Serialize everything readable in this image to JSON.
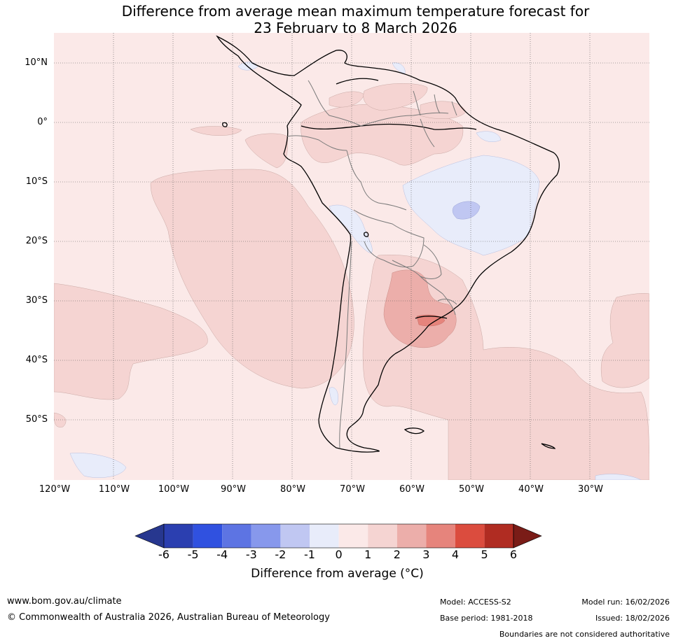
{
  "title": {
    "line1": "Difference from average mean maximum temperature forecast for",
    "line2": "23 February to 8 March 2026"
  },
  "map": {
    "lat_labels": [
      "10°N",
      "0°",
      "10°S",
      "20°S",
      "30°S",
      "40°S",
      "50°S"
    ],
    "lon_labels": [
      "120°W",
      "110°W",
      "100°W",
      "90°W",
      "80°W",
      "70°W",
      "60°W",
      "50°W",
      "40°W",
      "30°W"
    ],
    "lat_range": [
      -60,
      15
    ],
    "lon_range": [
      -120,
      -20
    ],
    "background_anomaly_range": "0 to 1"
  },
  "colorbar": {
    "tick_labels": [
      "-6",
      "-5",
      "-4",
      "-3",
      "-2",
      "-1",
      "0",
      "1",
      "2",
      "3",
      "4",
      "5",
      "6"
    ],
    "colors": [
      "#27378f",
      "#2b3fb0",
      "#3051e0",
      "#5d74e3",
      "#8798ec",
      "#c0c7f2",
      "#e8ecfa",
      "#fbe9e8",
      "#f5d4d2",
      "#ecaeaa",
      "#e6847c",
      "#db4c3e",
      "#b02c22",
      "#7a1c17"
    ],
    "title": "Difference from average (°C)"
  },
  "footer": {
    "website": "www.bom.gov.au/climate",
    "copyright": "© Commonwealth of Australia 2026, Australian Bureau of Meteorology",
    "model": "Model: ACCESS-S2",
    "base_period": "Base period: 1981-2018",
    "model_run": "Model run: 16/02/2026",
    "issued": "Issued: 18/02/2026",
    "disclaimer": "Boundaries are not considered authoritative"
  }
}
